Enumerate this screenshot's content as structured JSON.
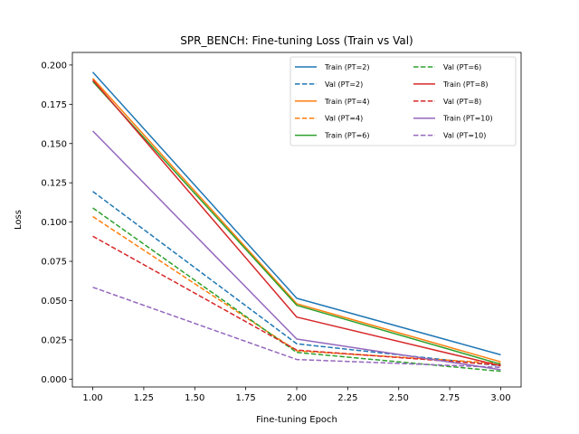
{
  "chart_data": {
    "type": "line",
    "title": "SPR_BENCH: Fine-tuning Loss (Train vs Val)",
    "xlabel": "Fine-tuning Epoch",
    "ylabel": "Loss",
    "xlim": [
      0.9,
      3.1
    ],
    "ylim": [
      -0.005,
      0.208
    ],
    "xticks": [
      "1.00",
      "1.25",
      "1.50",
      "1.75",
      "2.00",
      "2.25",
      "2.50",
      "2.75",
      "3.00"
    ],
    "yticks": [
      "0.000",
      "0.025",
      "0.050",
      "0.075",
      "0.100",
      "0.125",
      "0.150",
      "0.175",
      "0.200"
    ],
    "grid": false,
    "legend_position": "top-right",
    "x": [
      1,
      2,
      3
    ],
    "series": [
      {
        "name": "Train (PT=2)",
        "values": [
          0.1955,
          0.0515,
          0.0155
        ],
        "color": "#1f77b4",
        "style": "solid"
      },
      {
        "name": "Val (PT=2)",
        "values": [
          0.1195,
          0.0225,
          0.0085
        ],
        "color": "#1f77b4",
        "style": "dashed"
      },
      {
        "name": "Train (PT=4)",
        "values": [
          0.1915,
          0.048,
          0.011
        ],
        "color": "#ff7f0e",
        "style": "solid"
      },
      {
        "name": "Val (PT=4)",
        "values": [
          0.1035,
          0.018,
          0.01
        ],
        "color": "#ff7f0e",
        "style": "dashed"
      },
      {
        "name": "Train (PT=6)",
        "values": [
          0.1895,
          0.047,
          0.0095
        ],
        "color": "#2ca02c",
        "style": "solid"
      },
      {
        "name": "Val (PT=6)",
        "values": [
          0.109,
          0.017,
          0.005
        ],
        "color": "#2ca02c",
        "style": "dashed"
      },
      {
        "name": "Train (PT=8)",
        "values": [
          0.1905,
          0.0395,
          0.0085
        ],
        "color": "#d62728",
        "style": "solid"
      },
      {
        "name": "Val (PT=8)",
        "values": [
          0.091,
          0.0185,
          0.009
        ],
        "color": "#d62728",
        "style": "dashed"
      },
      {
        "name": "Train (PT=10)",
        "values": [
          0.158,
          0.0255,
          0.006
        ],
        "color": "#9467bd",
        "style": "solid"
      },
      {
        "name": "Val (PT=10)",
        "values": [
          0.0585,
          0.0125,
          0.0075
        ],
        "color": "#9467bd",
        "style": "dashed"
      }
    ]
  }
}
